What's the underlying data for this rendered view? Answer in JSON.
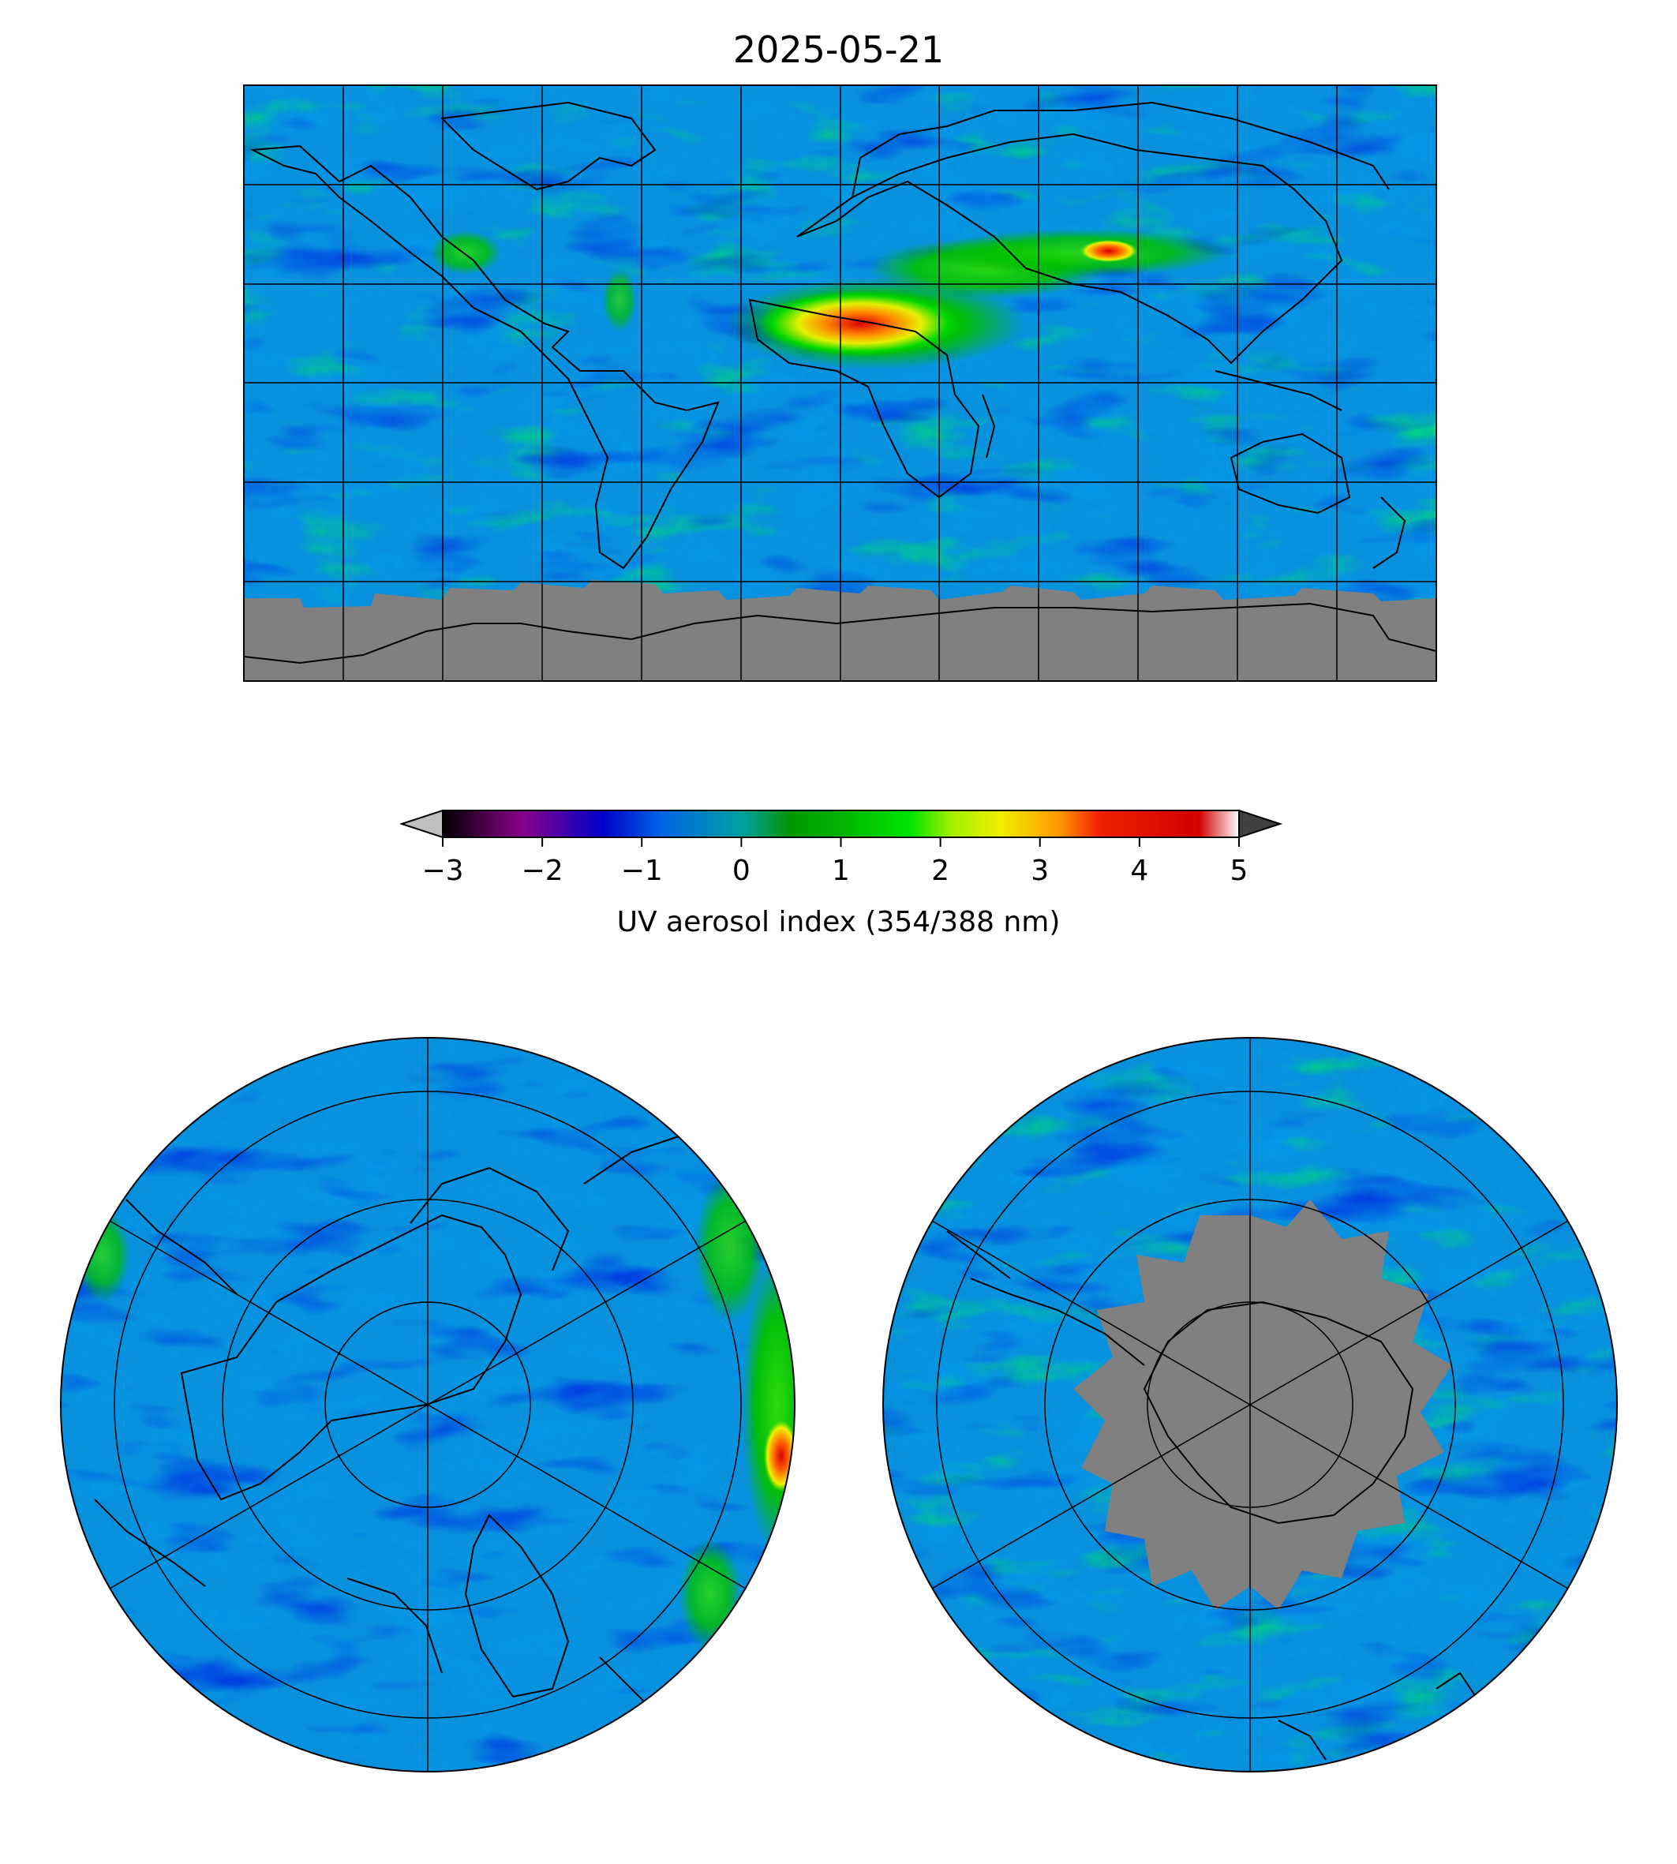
{
  "title": "2025-05-21",
  "colorbar": {
    "label": "UV aerosol index (354/388 nm)",
    "ticks": [
      "−3",
      "−2",
      "−1",
      "0",
      "1",
      "2",
      "3",
      "4",
      "5"
    ],
    "range": [
      -3,
      5
    ],
    "extend": "both",
    "under_color": "#c0c0c0",
    "over_color": "#404040",
    "stops": [
      {
        "v": -3.0,
        "c": "#000000"
      },
      {
        "v": -2.2,
        "c": "#8a008a"
      },
      {
        "v": -1.4,
        "c": "#0000c8"
      },
      {
        "v": -0.8,
        "c": "#0064e6"
      },
      {
        "v": 0.0,
        "c": "#00a0a0"
      },
      {
        "v": 0.5,
        "c": "#009600"
      },
      {
        "v": 1.0,
        "c": "#00b400"
      },
      {
        "v": 1.7,
        "c": "#00e600"
      },
      {
        "v": 2.1,
        "c": "#a0f000"
      },
      {
        "v": 2.6,
        "c": "#f0f000"
      },
      {
        "v": 3.2,
        "c": "#ff9600"
      },
      {
        "v": 3.6,
        "c": "#f02000"
      },
      {
        "v": 4.6,
        "c": "#d20000"
      },
      {
        "v": 5.0,
        "c": "#ffffff"
      }
    ]
  },
  "maps": {
    "global": {
      "projection": "Plate Carrée",
      "no_data_color": "#808080"
    },
    "north_polar": {
      "projection": "North polar stereographic"
    },
    "south_polar": {
      "projection": "South polar stereographic",
      "no_data_color": "#808080"
    }
  },
  "colors": {
    "background_bias": "#0a8ee0",
    "no_data": "#808080"
  }
}
